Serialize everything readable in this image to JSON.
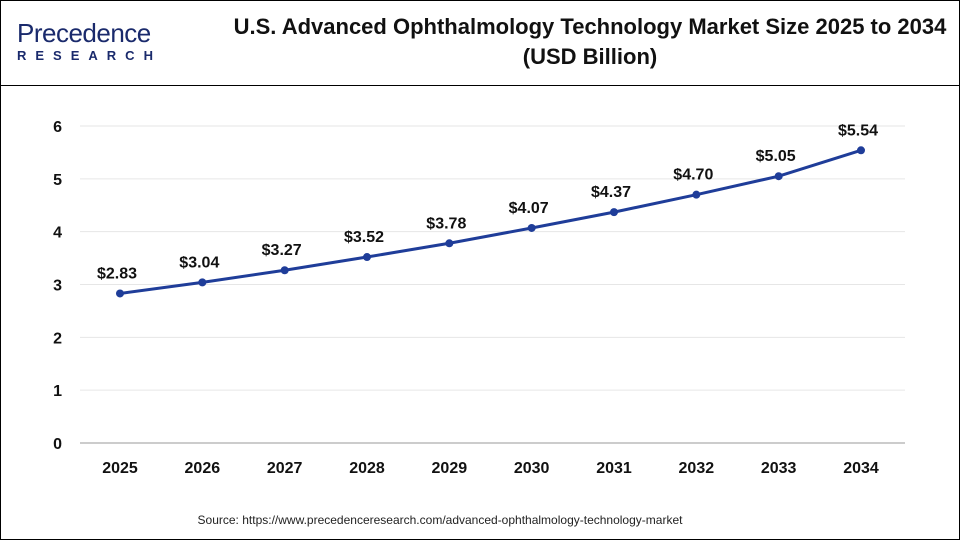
{
  "logo": {
    "text": "Precedence",
    "sub": "RESEARCH"
  },
  "title_line1": "U.S. Advanced Ophthalmology Technology Market Size 2025 to 2034",
  "title_line2": "(USD Billion)",
  "source": "Source: https://www.precedenceresearch.com/advanced-ophthalmology-technology-market",
  "chart_data": {
    "type": "line",
    "categories": [
      "2025",
      "2026",
      "2027",
      "2028",
      "2029",
      "2030",
      "2031",
      "2032",
      "2033",
      "2034"
    ],
    "values": [
      2.83,
      3.04,
      3.27,
      3.52,
      3.78,
      4.07,
      4.37,
      4.7,
      5.05,
      5.54
    ],
    "data_labels": [
      "$2.83",
      "$3.04",
      "$3.27",
      "$3.52",
      "$3.78",
      "$4.07",
      "$4.37",
      "$4.70",
      "$5.05",
      "$5.54"
    ],
    "yticks": [
      0,
      1,
      2,
      3,
      4,
      5,
      6
    ],
    "ylim": [
      0,
      6
    ],
    "grid": true,
    "line_color": "#1f3d99",
    "title": "U.S. Advanced Ophthalmology Technology Market Size 2025 to 2034 (USD Billion)",
    "xlabel": "",
    "ylabel": ""
  }
}
